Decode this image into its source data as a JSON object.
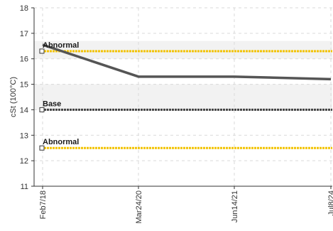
{
  "chart_data": {
    "type": "line",
    "ylabel": "cSt (100°C)",
    "xlabel": "",
    "ylim": [
      11,
      18
    ],
    "y_ticks": [
      "11",
      "12",
      "13",
      "14",
      "15",
      "16",
      "17",
      "18"
    ],
    "x_ticks": [
      "Feb7/18",
      "Mar24/20",
      "Jun14/21",
      "Jul8/24"
    ],
    "grid": true,
    "series": [
      {
        "values": [
          {
            "x": "Feb7/18",
            "y": 16.55
          },
          {
            "x": "Mar24/20",
            "y": 15.3
          },
          {
            "x": "Jun14/21",
            "y": 15.3
          },
          {
            "x": "Jul8/24",
            "y": 15.2
          }
        ],
        "color": "#555555"
      }
    ],
    "reference_lines": [
      {
        "label": "Abnormal",
        "y": 16.3,
        "color": "#f2c200",
        "band": [
          16.0,
          16.7
        ]
      },
      {
        "label": "Base",
        "y": 14.0,
        "color": "#444444",
        "band": [
          14.0,
          15.0
        ]
      },
      {
        "label": "Abnormal",
        "y": 12.5,
        "color": "#f2c200",
        "band": null
      }
    ]
  }
}
